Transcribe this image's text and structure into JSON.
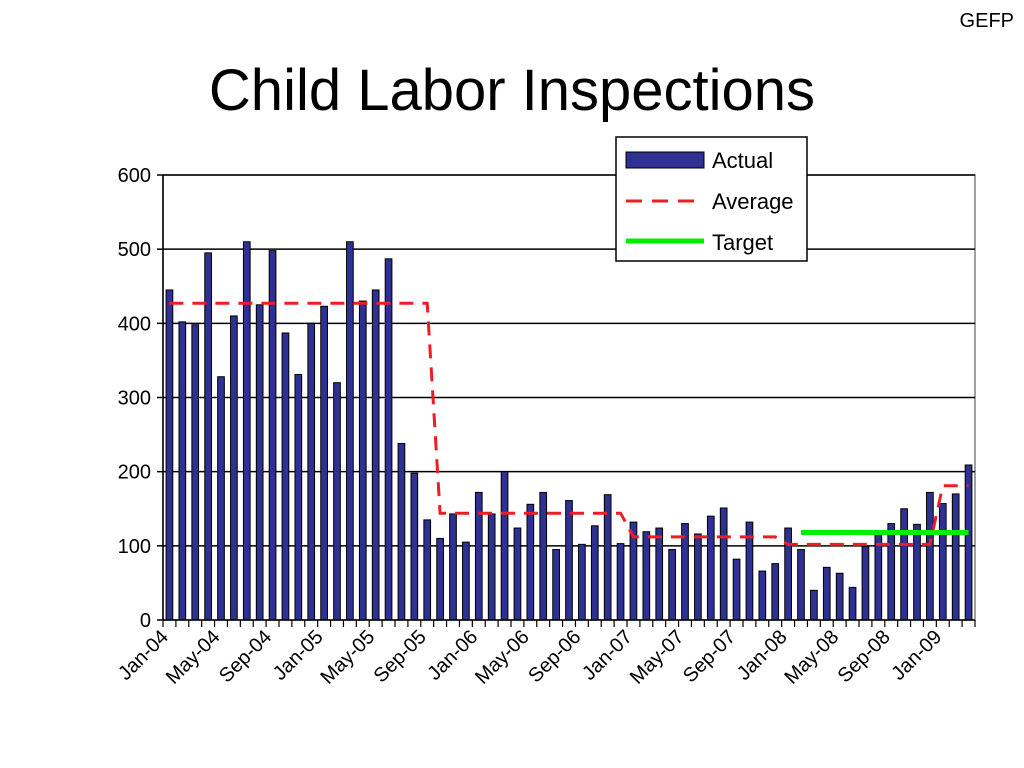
{
  "page": {
    "corner_tag": "GEFP",
    "title": "Child Labor Inspections"
  },
  "chart_data": {
    "type": "bar",
    "title": "Child Labor Inspections",
    "xlabel": "",
    "ylabel": "",
    "ylim": [
      0,
      600
    ],
    "yticks": [
      0,
      100,
      200,
      300,
      400,
      500,
      600
    ],
    "grid": true,
    "legend_position": "top-right",
    "colors": {
      "bar": "#2e3192",
      "bar_edge": "#000000",
      "average": "#ee1c25",
      "target": "#00ee00"
    },
    "x_labels": [
      "Jan-04",
      "May-04",
      "Sep-04",
      "Jan-05",
      "May-05",
      "Sep-05",
      "Jan-06",
      "May-06",
      "Sep-06",
      "Jan-07",
      "May-07",
      "Sep-07",
      "Jan-08",
      "May-08",
      "Sep-08",
      "Jan-09"
    ],
    "categories": [
      "Jan-04",
      "Feb-04",
      "Mar-04",
      "Apr-04",
      "May-04",
      "Jun-04",
      "Jul-04",
      "Aug-04",
      "Sep-04",
      "Oct-04",
      "Nov-04",
      "Dec-04",
      "Jan-05",
      "Feb-05",
      "Mar-05",
      "Apr-05",
      "May-05",
      "Jun-05",
      "Jul-05",
      "Aug-05",
      "Sep-05",
      "Oct-05",
      "Nov-05",
      "Dec-05",
      "Jan-06",
      "Feb-06",
      "Mar-06",
      "Apr-06",
      "May-06",
      "Jun-06",
      "Jul-06",
      "Aug-06",
      "Sep-06",
      "Oct-06",
      "Nov-06",
      "Dec-06",
      "Jan-07",
      "Feb-07",
      "Mar-07",
      "Apr-07",
      "May-07",
      "Jun-07",
      "Jul-07",
      "Aug-07",
      "Sep-07",
      "Oct-07",
      "Nov-07",
      "Dec-07",
      "Jan-08",
      "Feb-08",
      "Mar-08",
      "Apr-08",
      "May-08",
      "Jun-08",
      "Jul-08",
      "Aug-08",
      "Sep-08",
      "Oct-08",
      "Nov-08",
      "Dec-08",
      "Jan-09",
      "Feb-09",
      "Mar-09"
    ],
    "series": [
      {
        "name": "Actual",
        "kind": "bar",
        "values": [
          445,
          402,
          398,
          495,
          328,
          410,
          510,
          425,
          498,
          387,
          331,
          400,
          423,
          320,
          510,
          430,
          445,
          487,
          238,
          198,
          135,
          110,
          143,
          105,
          172,
          143,
          200,
          124,
          156,
          172,
          95,
          161,
          102,
          127,
          169,
          103,
          132,
          119,
          124,
          95,
          130,
          116,
          140,
          151,
          82,
          132,
          66,
          76,
          124,
          95,
          40,
          71,
          63,
          44,
          99,
          117,
          130,
          150,
          129,
          172,
          157,
          170,
          209
        ]
      },
      {
        "name": "Average",
        "kind": "line",
        "style": "dashed",
        "segments": [
          {
            "from": "Jan-04",
            "to": "Sep-05",
            "value": 427
          },
          {
            "from": "Oct-05",
            "to": "Dec-06",
            "value": 144
          },
          {
            "from": "Jan-07",
            "to": "Dec-07",
            "value": 112
          },
          {
            "from": "Jan-08",
            "to": "Dec-08",
            "value": 102
          },
          {
            "from": "Jan-09",
            "to": "Mar-09",
            "value": 181
          }
        ]
      },
      {
        "name": "Target",
        "kind": "line",
        "style": "solid",
        "segments": [
          {
            "from": "Feb-08",
            "to": "Mar-09",
            "value": 118
          }
        ]
      }
    ]
  }
}
